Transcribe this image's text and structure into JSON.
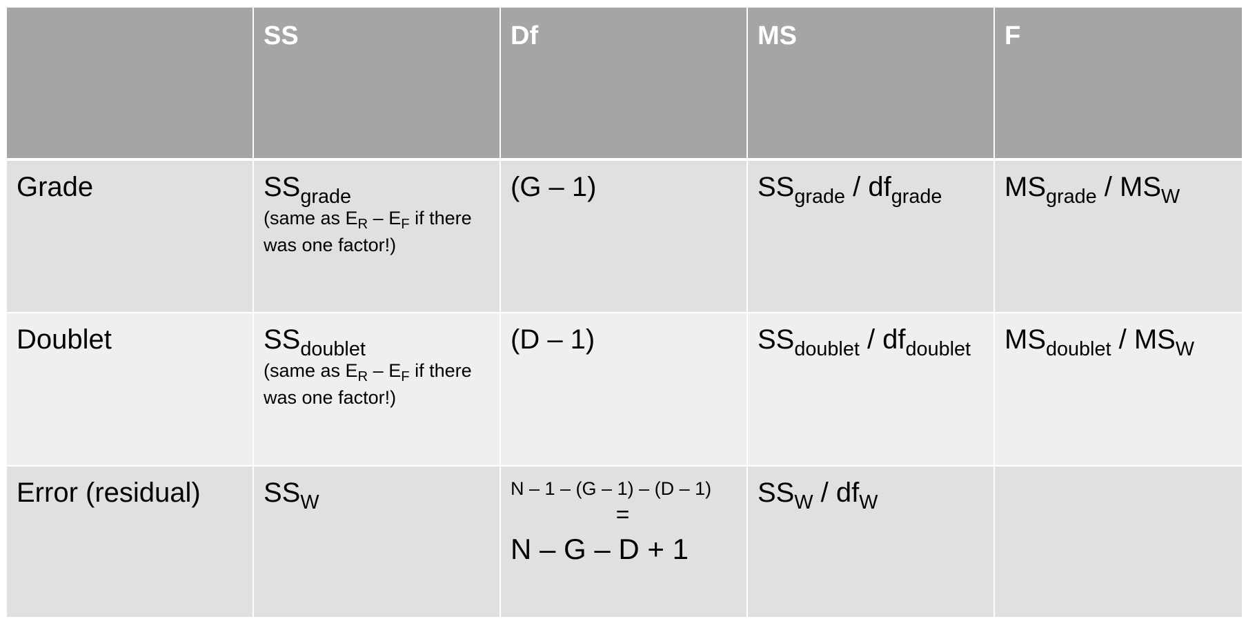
{
  "header": {
    "corner": "",
    "ss": "SS",
    "df": "Df",
    "ms": "MS",
    "f": "F"
  },
  "rows": {
    "grade": {
      "label": "Grade",
      "ss_main": "SS",
      "ss_sub": "grade",
      "ss_note_a": "(same as E",
      "ss_note_sub1": "R",
      "ss_note_b": " – E",
      "ss_note_sub2": "F",
      "ss_note_c": " if there was one factor!)",
      "df": "(G – 1)",
      "ms_a": "SS",
      "ms_a_sub": "grade",
      "ms_sep": " / df",
      "ms_b_sub": "grade",
      "f_a": "MS",
      "f_a_sub": "grade",
      "f_sep": " / MS",
      "f_b_sub": "W"
    },
    "doublet": {
      "label": "Doublet",
      "ss_main": "SS",
      "ss_sub": "doublet",
      "ss_note_a": "(same as E",
      "ss_note_sub1": "R",
      "ss_note_b": " – E",
      "ss_note_sub2": "F",
      "ss_note_c": " if there was one factor!)",
      "df": "(D – 1)",
      "ms_a": "SS",
      "ms_a_sub": "doublet",
      "ms_sep": " / df",
      "ms_b_sub": "doublet",
      "f_a": "MS",
      "f_a_sub": "doublet",
      "f_sep": " / MS",
      "f_b_sub": "W"
    },
    "error": {
      "label": "Error (residual)",
      "ss_main": "SS",
      "ss_sub": "W",
      "df_line1": "N – 1 – (G – 1) – (D – 1)",
      "df_equals": "=",
      "df_line2": "N – G – D + 1",
      "ms_a": "SS",
      "ms_a_sub": "W",
      "ms_sep": " / df",
      "ms_b_sub": "W",
      "f": ""
    }
  }
}
